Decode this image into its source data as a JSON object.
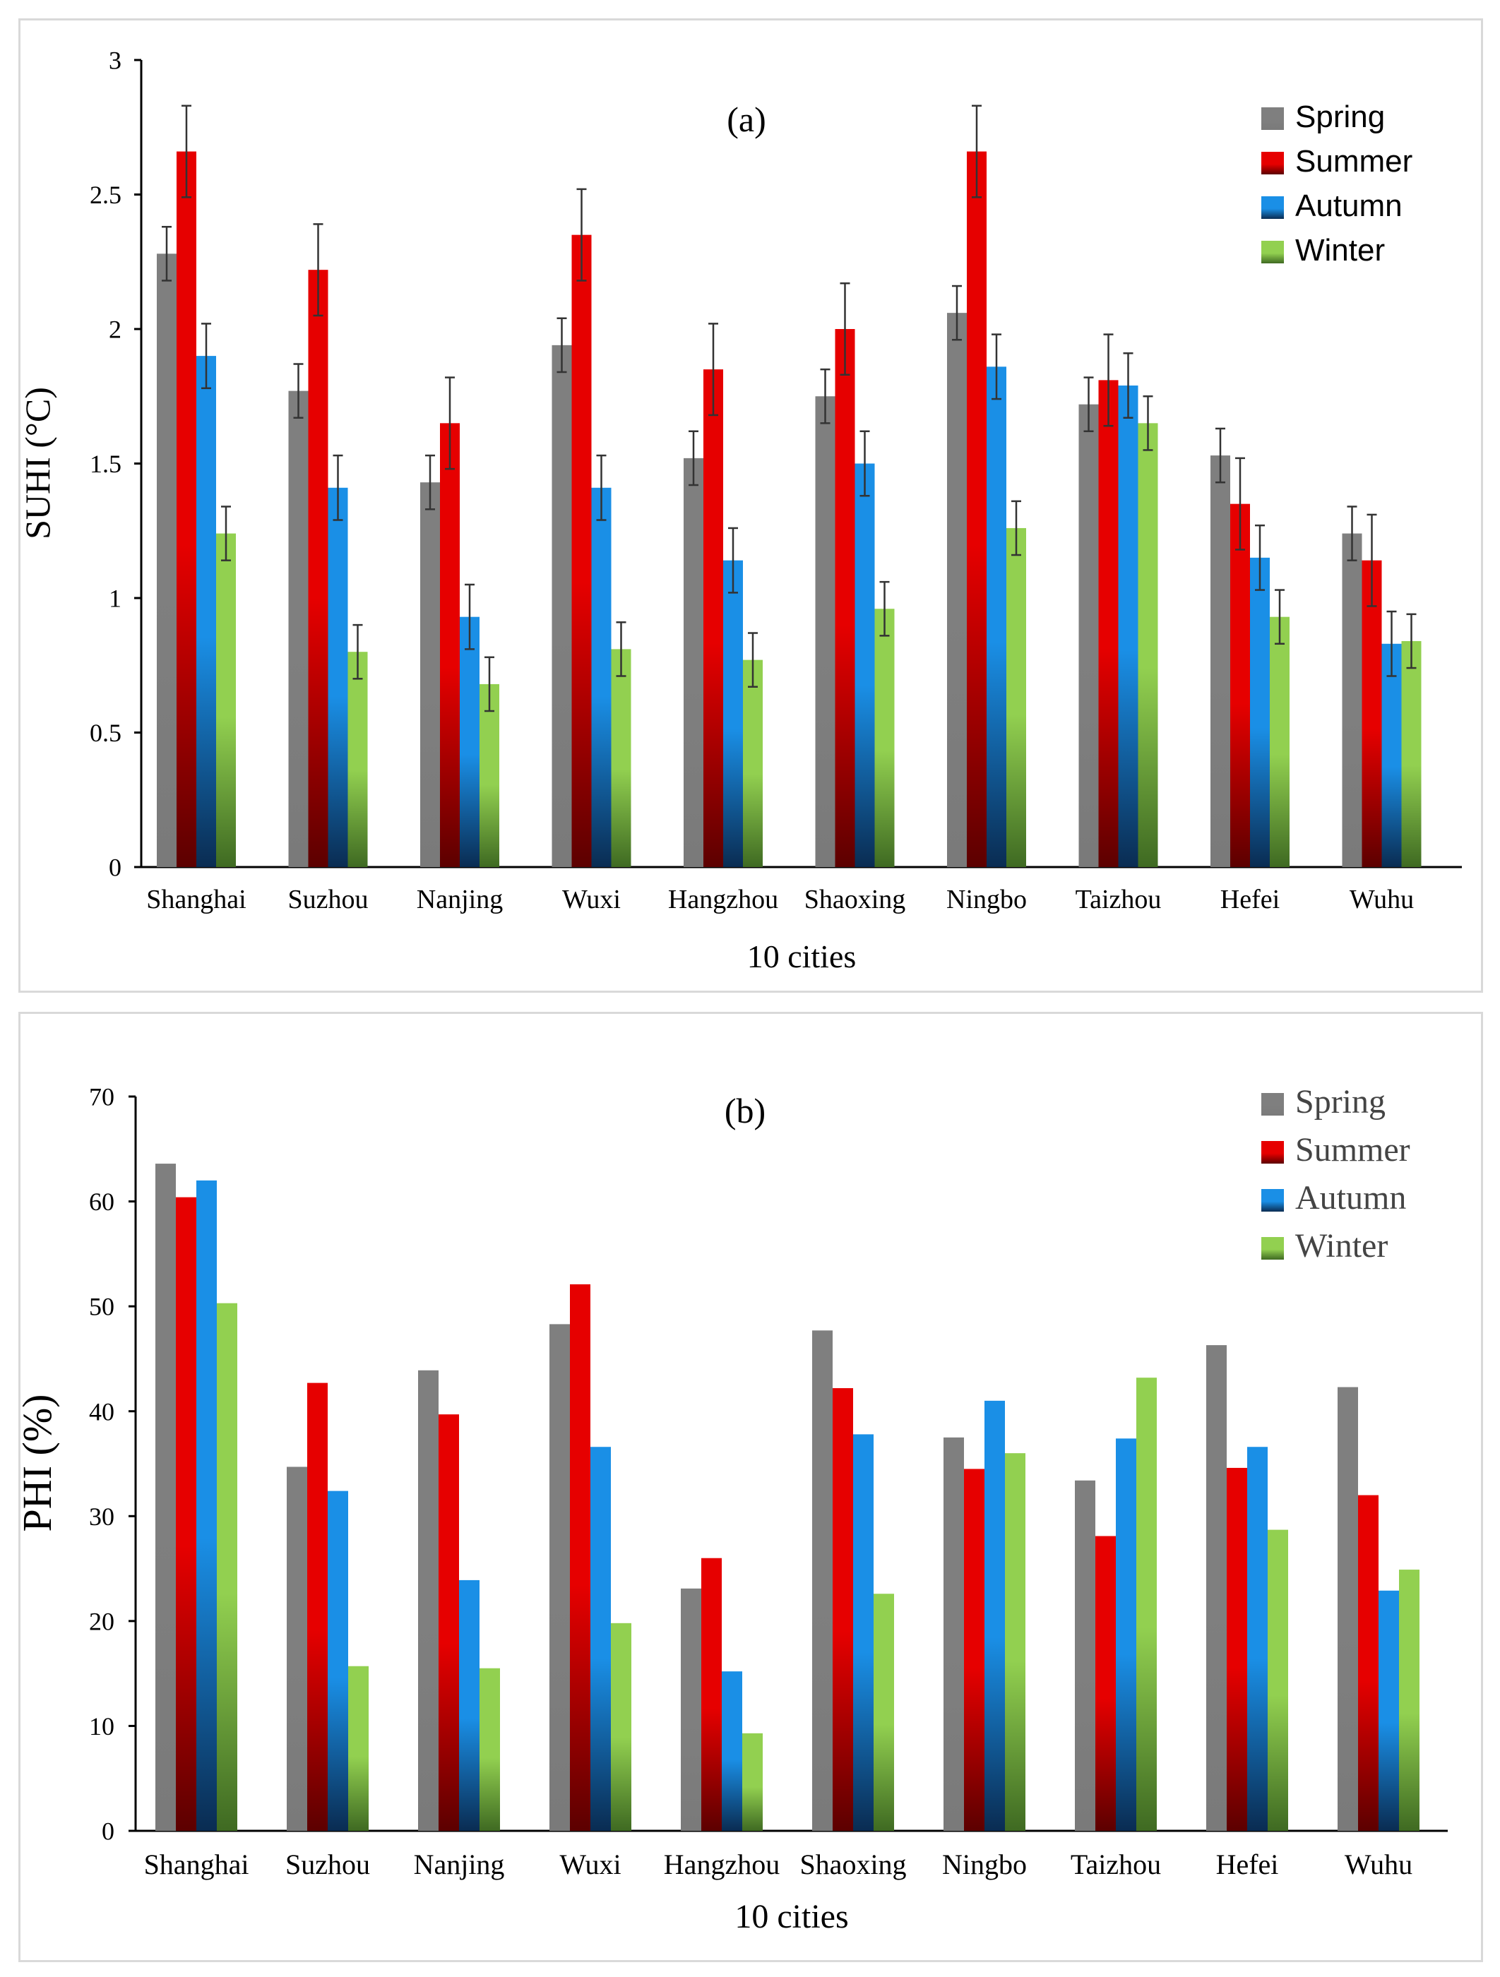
{
  "chart_data": [
    {
      "type": "bar",
      "panel_label": "(a)",
      "xlabel": "10 cities",
      "ylabel": "SUHI (°C)",
      "ylim": [
        0,
        3
      ],
      "yticks": [
        "0",
        "0.5",
        "1",
        "1.5",
        "2",
        "2.5",
        "3"
      ],
      "grid": false,
      "legend_position": "top-right",
      "error_bars": true,
      "categories": [
        "Shanghai",
        "Suzhou",
        "Nanjing",
        "Wuxi",
        "Hangzhou",
        "Shaoxing",
        "Ningbo",
        "Taizhou",
        "Hefei",
        "Wuhu"
      ],
      "series": [
        {
          "name": "Spring",
          "color": "#7f7f7f",
          "values": [
            2.28,
            1.77,
            1.43,
            1.94,
            1.52,
            1.75,
            2.06,
            1.72,
            1.53,
            1.24
          ],
          "errors": [
            0.1,
            0.1,
            0.1,
            0.1,
            0.1,
            0.1,
            0.1,
            0.1,
            0.1,
            0.1
          ]
        },
        {
          "name": "Summer",
          "color": "#e60000",
          "values": [
            2.66,
            2.22,
            1.65,
            2.35,
            1.85,
            2.0,
            2.66,
            1.81,
            1.35,
            1.14
          ],
          "errors": [
            0.17,
            0.17,
            0.17,
            0.17,
            0.17,
            0.17,
            0.17,
            0.17,
            0.17,
            0.17
          ]
        },
        {
          "name": "Autumn",
          "color": "#1a8fe6",
          "values": [
            1.9,
            1.41,
            0.93,
            1.41,
            1.14,
            1.5,
            1.86,
            1.79,
            1.15,
            0.83
          ],
          "errors": [
            0.12,
            0.12,
            0.12,
            0.12,
            0.12,
            0.12,
            0.12,
            0.12,
            0.12,
            0.12
          ]
        },
        {
          "name": "Winter",
          "color": "#92d050",
          "values": [
            1.24,
            0.8,
            0.68,
            0.81,
            0.77,
            0.96,
            1.26,
            1.65,
            0.93,
            0.84
          ],
          "errors": [
            0.1,
            0.1,
            0.1,
            0.1,
            0.1,
            0.1,
            0.1,
            0.1,
            0.1,
            0.1
          ]
        }
      ]
    },
    {
      "type": "bar",
      "panel_label": "(b)",
      "xlabel": "10 cities",
      "ylabel": "PHI (%)",
      "ylim": [
        0,
        70
      ],
      "yticks": [
        "0",
        "10",
        "20",
        "30",
        "40",
        "50",
        "60",
        "70"
      ],
      "grid": false,
      "legend_position": "top-right",
      "error_bars": false,
      "categories": [
        "Shanghai",
        "Suzhou",
        "Nanjing",
        "Wuxi",
        "Hangzhou",
        "Shaoxing",
        "Ningbo",
        "Taizhou",
        "Hefei",
        "Wuhu"
      ],
      "series": [
        {
          "name": "Spring",
          "color": "#7f7f7f",
          "values": [
            63.6,
            34.7,
            43.9,
            48.3,
            23.1,
            47.7,
            37.5,
            33.4,
            46.3,
            42.3
          ]
        },
        {
          "name": "Summer",
          "color": "#e60000",
          "values": [
            60.4,
            42.7,
            39.7,
            52.1,
            26.0,
            42.2,
            34.5,
            28.1,
            34.6,
            32.0
          ]
        },
        {
          "name": "Autumn",
          "color": "#1a8fe6",
          "values": [
            62.0,
            32.4,
            23.9,
            36.6,
            15.2,
            37.8,
            41.0,
            37.4,
            36.6,
            22.9
          ]
        },
        {
          "name": "Winter",
          "color": "#92d050",
          "values": [
            50.3,
            15.7,
            15.5,
            19.8,
            9.3,
            22.6,
            36.0,
            43.2,
            28.7,
            24.9
          ]
        }
      ]
    }
  ]
}
